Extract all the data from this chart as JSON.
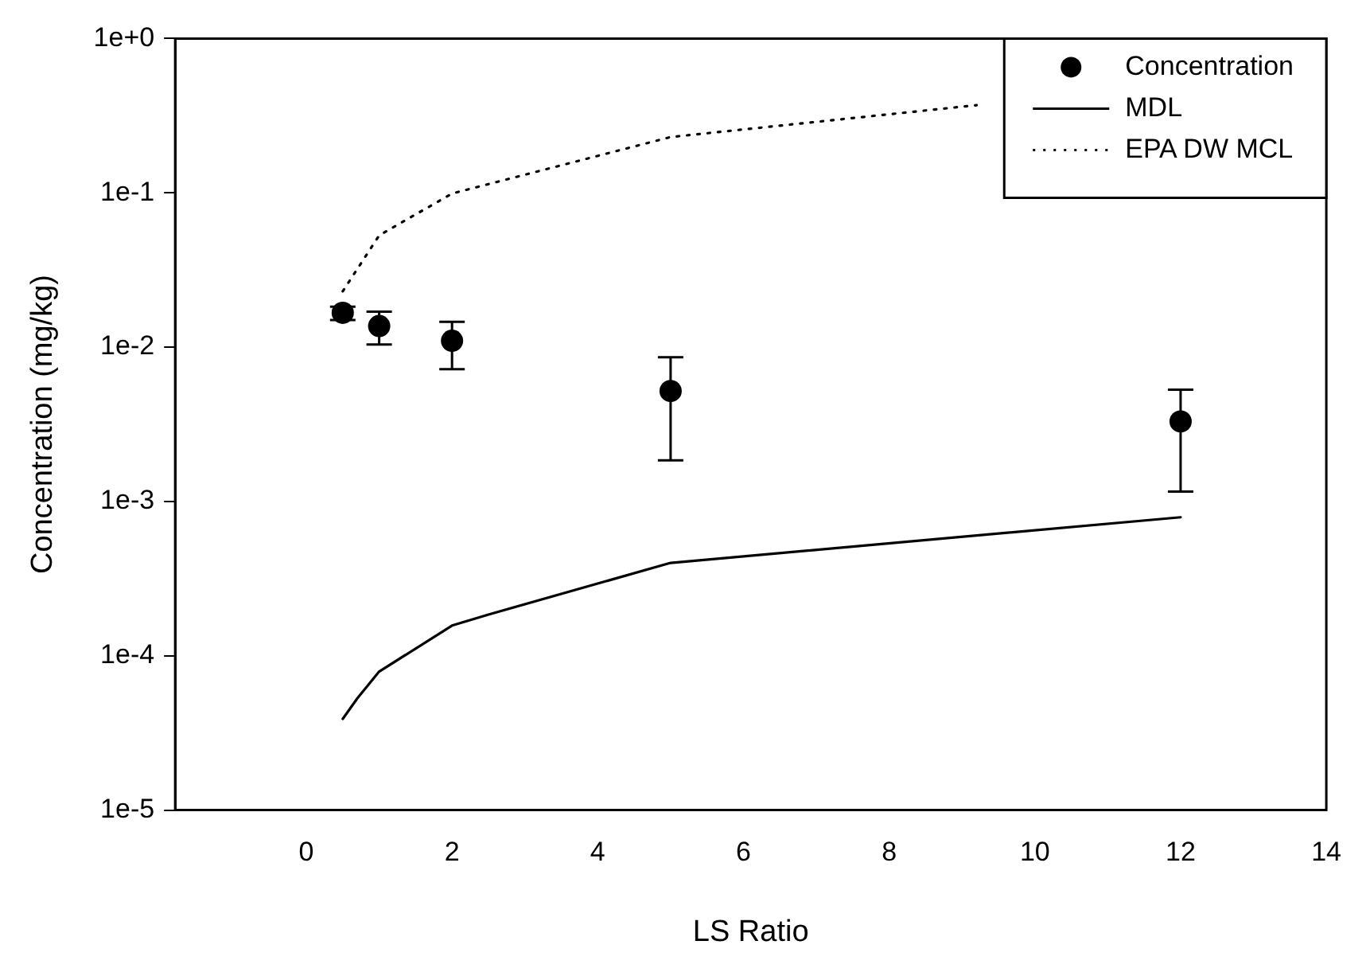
{
  "chart_data": {
    "type": "scatter",
    "xlabel": "LS Ratio",
    "ylabel": "Concentration (mg/kg)",
    "log": "y",
    "grid": false,
    "legend": "top right",
    "xlim": [
      -1.8,
      14
    ],
    "xticks": [
      0,
      2,
      4,
      6,
      8,
      10,
      12,
      14
    ],
    "ylim": [
      1e-05,
      1
    ],
    "yticks": [
      {
        "value": 1,
        "label": "1e+0"
      },
      {
        "value": 0.1,
        "label": "1e-1"
      },
      {
        "value": 0.01,
        "label": "1e-2"
      },
      {
        "value": 0.001,
        "label": "1e-3"
      },
      {
        "value": 0.0001,
        "label": "1e-4"
      },
      {
        "value": 1e-05,
        "label": "1e-5"
      }
    ],
    "series": [
      {
        "name": "Concentration",
        "type": "scatter",
        "color": "#000000",
        "marker": "circle",
        "x": [
          0.5,
          1,
          2,
          5,
          12
        ],
        "values": [
          0.0167,
          0.0137,
          0.011,
          0.0052,
          0.0033
        ],
        "errors": [
          [
            0.015,
            0.0183
          ],
          [
            0.0104,
            0.017
          ],
          [
            0.0072,
            0.0146
          ],
          [
            0.00185,
            0.0086
          ],
          [
            0.00116,
            0.0053
          ]
        ]
      },
      {
        "name": "MDL",
        "type": "line",
        "color": "#000000",
        "marker": "none",
        "line_style": "solid",
        "x": [
          0.5,
          0.7,
          1,
          2,
          2.5,
          5,
          12
        ],
        "values": [
          3.9e-05,
          5.3e-05,
          7.9e-05,
          0.000157,
          0.000185,
          0.0004,
          0.00079
        ]
      },
      {
        "name": "EPA DW MCL",
        "type": "line",
        "color": "#000000",
        "marker": "none",
        "line_style": "dotted",
        "x": [
          0.5,
          1,
          2,
          5,
          9.2
        ],
        "values": [
          0.023,
          0.053,
          0.099,
          0.23,
          0.37
        ]
      }
    ]
  }
}
